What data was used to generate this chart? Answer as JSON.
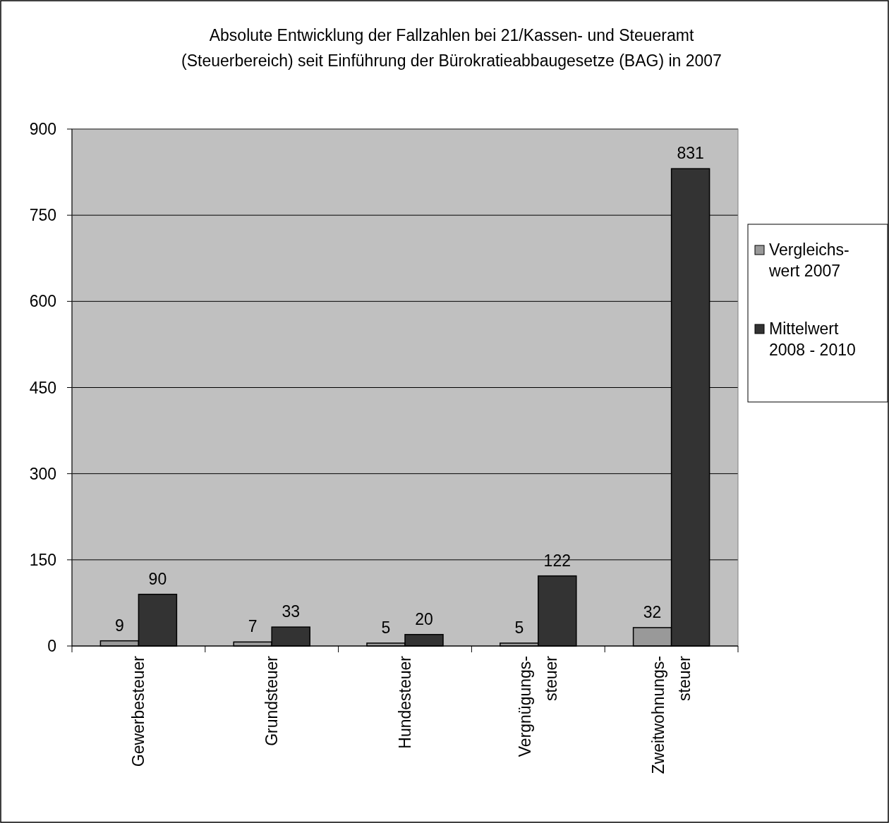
{
  "chart_data": {
    "type": "bar",
    "title": "Absolute Entwicklung der Fallzahlen bei 21/Kassen- und Steueramt\n(Steuerbereich) seit Einführung der Bürokratieabbaugesetze (BAG) in 2007",
    "categories": [
      "Gewerbesteuer",
      "Grundsteuer",
      "Hundesteuer",
      "Vergnügungs-\nsteuer",
      "Zweitwohnungs-\nsteuer"
    ],
    "series": [
      {
        "name": "Vergleichs-\nwert 2007",
        "color": "#999999",
        "values": [
          9,
          7,
          5,
          5,
          32
        ]
      },
      {
        "name": "Mittelwert\n2008 - 2010",
        "color": "#333333",
        "values": [
          90,
          33,
          20,
          122,
          831
        ]
      }
    ],
    "ylim": [
      0,
      900
    ],
    "yticks": [
      0,
      150,
      300,
      450,
      600,
      750,
      900
    ],
    "grid": "y",
    "legend": "right",
    "data_labels": true
  }
}
